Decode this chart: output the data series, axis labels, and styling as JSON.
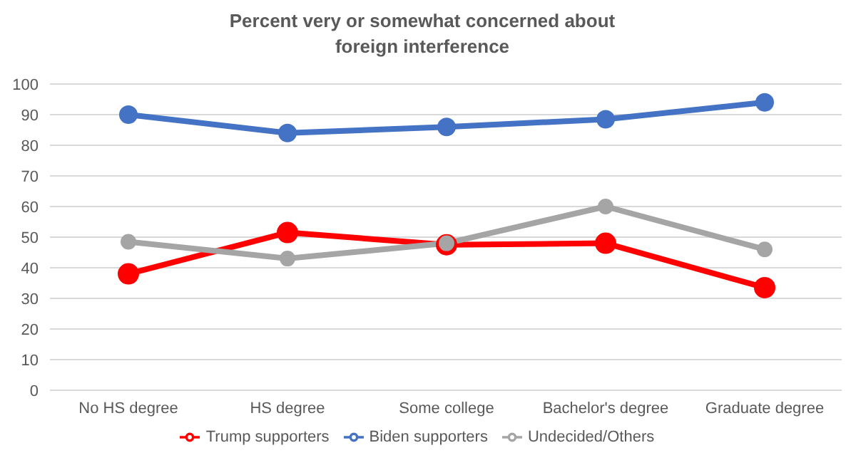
{
  "chart_data": {
    "type": "line",
    "title": "Percent very or somewhat concerned about foreign interference",
    "categories": [
      "No HS degree",
      "HS degree",
      "Some college",
      "Bachelor's degree",
      "Graduate degree"
    ],
    "series": [
      {
        "name": "Trump supporters",
        "color": "#ff0000",
        "values": [
          38,
          51.5,
          47.5,
          48,
          33.5
        ]
      },
      {
        "name": "Biden supporters",
        "color": "#4472c4",
        "values": [
          90,
          84,
          86,
          88.5,
          94
        ]
      },
      {
        "name": "Undecided/Others",
        "color": "#a5a5a5",
        "values": [
          48.5,
          43,
          48,
          60,
          46
        ]
      }
    ],
    "ylim": [
      0,
      100
    ],
    "yticks": [
      0,
      10,
      20,
      30,
      40,
      50,
      60,
      70,
      80,
      90,
      100
    ],
    "grid": "y",
    "legend": "bottom",
    "marker": "circle",
    "line_style": "solid"
  }
}
